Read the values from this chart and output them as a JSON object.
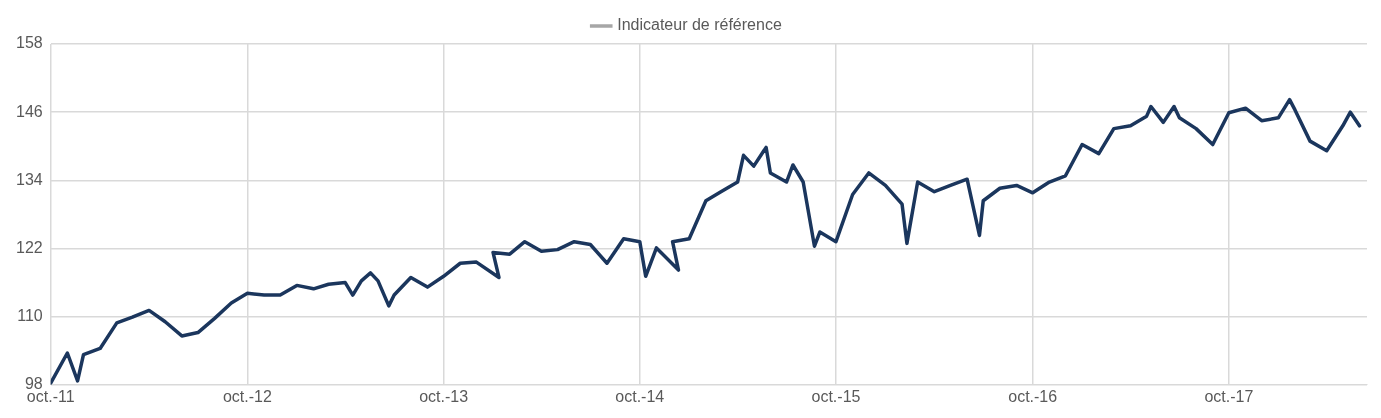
{
  "chart_data": {
    "type": "line",
    "x": [
      "2011-10",
      "2011-11",
      "2011-11-20",
      "2011-12",
      "2012-01",
      "2012-02",
      "2012-03",
      "2012-04",
      "2012-05",
      "2012-06",
      "2012-07",
      "2012-08",
      "2012-09",
      "2012-10",
      "2012-11",
      "2012-12",
      "2013-01",
      "2013-02",
      "2013-03",
      "2013-04",
      "2013-04-15",
      "2013-05",
      "2013-05-18",
      "2013-06",
      "2013-06-21",
      "2013-07",
      "2013-08",
      "2013-09",
      "2013-10",
      "2013-11",
      "2013-12",
      "2014-01-12",
      "2014-01",
      "2014-02",
      "2014-03",
      "2014-04",
      "2014-05",
      "2014-06",
      "2014-07",
      "2014-08",
      "2014-09",
      "2014-10",
      "2014-10-12",
      "2014-11",
      "2014-12-12",
      "2014-12",
      "2015-01",
      "2015-02",
      "2015-03",
      "2015-04",
      "2015-04-12",
      "2015-05",
      "2015-05-24",
      "2015-06",
      "2015-07",
      "2015-07-13",
      "2015-08",
      "2015-08-22",
      "2015-09",
      "2015-10",
      "2015-11",
      "2015-12",
      "2016-01",
      "2016-02",
      "2016-02-10",
      "2016-03",
      "2016-04",
      "2016-05",
      "2016-06",
      "2016-06-24",
      "2016-07",
      "2016-08",
      "2016-09",
      "2016-10",
      "2016-11",
      "2016-12",
      "2017-01",
      "2017-02",
      "2017-03",
      "2017-04",
      "2017-05",
      "2017-05-09",
      "2017-06",
      "2017-06-21",
      "2017-07",
      "2017-08",
      "2017-09",
      "2017-10",
      "2017-11",
      "2017-12",
      "2018-01",
      "2018-01-22",
      "2018-02",
      "2018-03",
      "2018-04",
      "2018-05",
      "2018-05-15",
      "2018-06"
    ],
    "series": [
      {
        "color": "#1b365d",
        "values": [
          98.3,
          103.6,
          98.7,
          103.3,
          104.4,
          108.9,
          109.9,
          111.1,
          109.1,
          106.6,
          107.2,
          109.7,
          112.4,
          114.1,
          113.8,
          113.8,
          115.5,
          114.9,
          115.7,
          116.0,
          113.8,
          116.3,
          117.7,
          116.3,
          111.9,
          113.8,
          116.9,
          115.2,
          117.1,
          119.4,
          119.6,
          116.9,
          121.3,
          121.0,
          123.2,
          121.5,
          121.8,
          123.2,
          122.7,
          119.4,
          123.7,
          123.2,
          117.1,
          122.1,
          118.2,
          123.2,
          123.7,
          130.4,
          132.0,
          133.7,
          138.4,
          136.5,
          139.8,
          135.3,
          133.7,
          136.7,
          133.7,
          122.4,
          124.9,
          123.2,
          131.5,
          135.3,
          133.1,
          129.8,
          122.9,
          133.7,
          132.0,
          133.1,
          134.2,
          124.3,
          130.4,
          132.6,
          133.1,
          131.8,
          133.7,
          134.8,
          140.3,
          138.7,
          143.1,
          143.6,
          145.3,
          147.0,
          144.2,
          147.0,
          145.0,
          143.1,
          140.3,
          145.9,
          146.7,
          144.5,
          145.0,
          148.2,
          146.4,
          140.9,
          139.2,
          143.6,
          146.0,
          143.6
        ]
      },
      {
        "name": "Indicateur de référence",
        "color": "#a6a6a6",
        "values": [
          null,
          null,
          null,
          null,
          null,
          null,
          null,
          null,
          null,
          null,
          null,
          null,
          null,
          null,
          null,
          null,
          null,
          null,
          null,
          null,
          null,
          null,
          null,
          null,
          null,
          null,
          null,
          null,
          null,
          null,
          null,
          null,
          null,
          null,
          null,
          null,
          null,
          null,
          null,
          null,
          null,
          null,
          null,
          null,
          null,
          null,
          null,
          null,
          null,
          null,
          null,
          null,
          null,
          null,
          null,
          null,
          null,
          null,
          null,
          null,
          null,
          null,
          null,
          null,
          null,
          null,
          null,
          null,
          null,
          null,
          null,
          null,
          null,
          null,
          null,
          null,
          null,
          null,
          null,
          null,
          null,
          null,
          null,
          null,
          null,
          null,
          null,
          null,
          null,
          null,
          null,
          null,
          null,
          null,
          null,
          null,
          null,
          null
        ]
      }
    ],
    "xlim": [
      "2011-10",
      "2018-06-15"
    ],
    "xticks": [
      {
        "value": "2011-10",
        "label": "oct.-11"
      },
      {
        "value": "2012-10",
        "label": "oct.-12"
      },
      {
        "value": "2013-10",
        "label": "oct.-13"
      },
      {
        "value": "2014-10",
        "label": "oct.-14"
      },
      {
        "value": "2015-10",
        "label": "oct.-15"
      },
      {
        "value": "2016-10",
        "label": "oct.-16"
      },
      {
        "value": "2017-10",
        "label": "oct.-17"
      }
    ],
    "ylim": [
      98,
      158
    ],
    "yticks": [
      98,
      110,
      122,
      134,
      146,
      158
    ],
    "grid": true,
    "legend": "top",
    "marker": "none",
    "line_style": "solid"
  }
}
